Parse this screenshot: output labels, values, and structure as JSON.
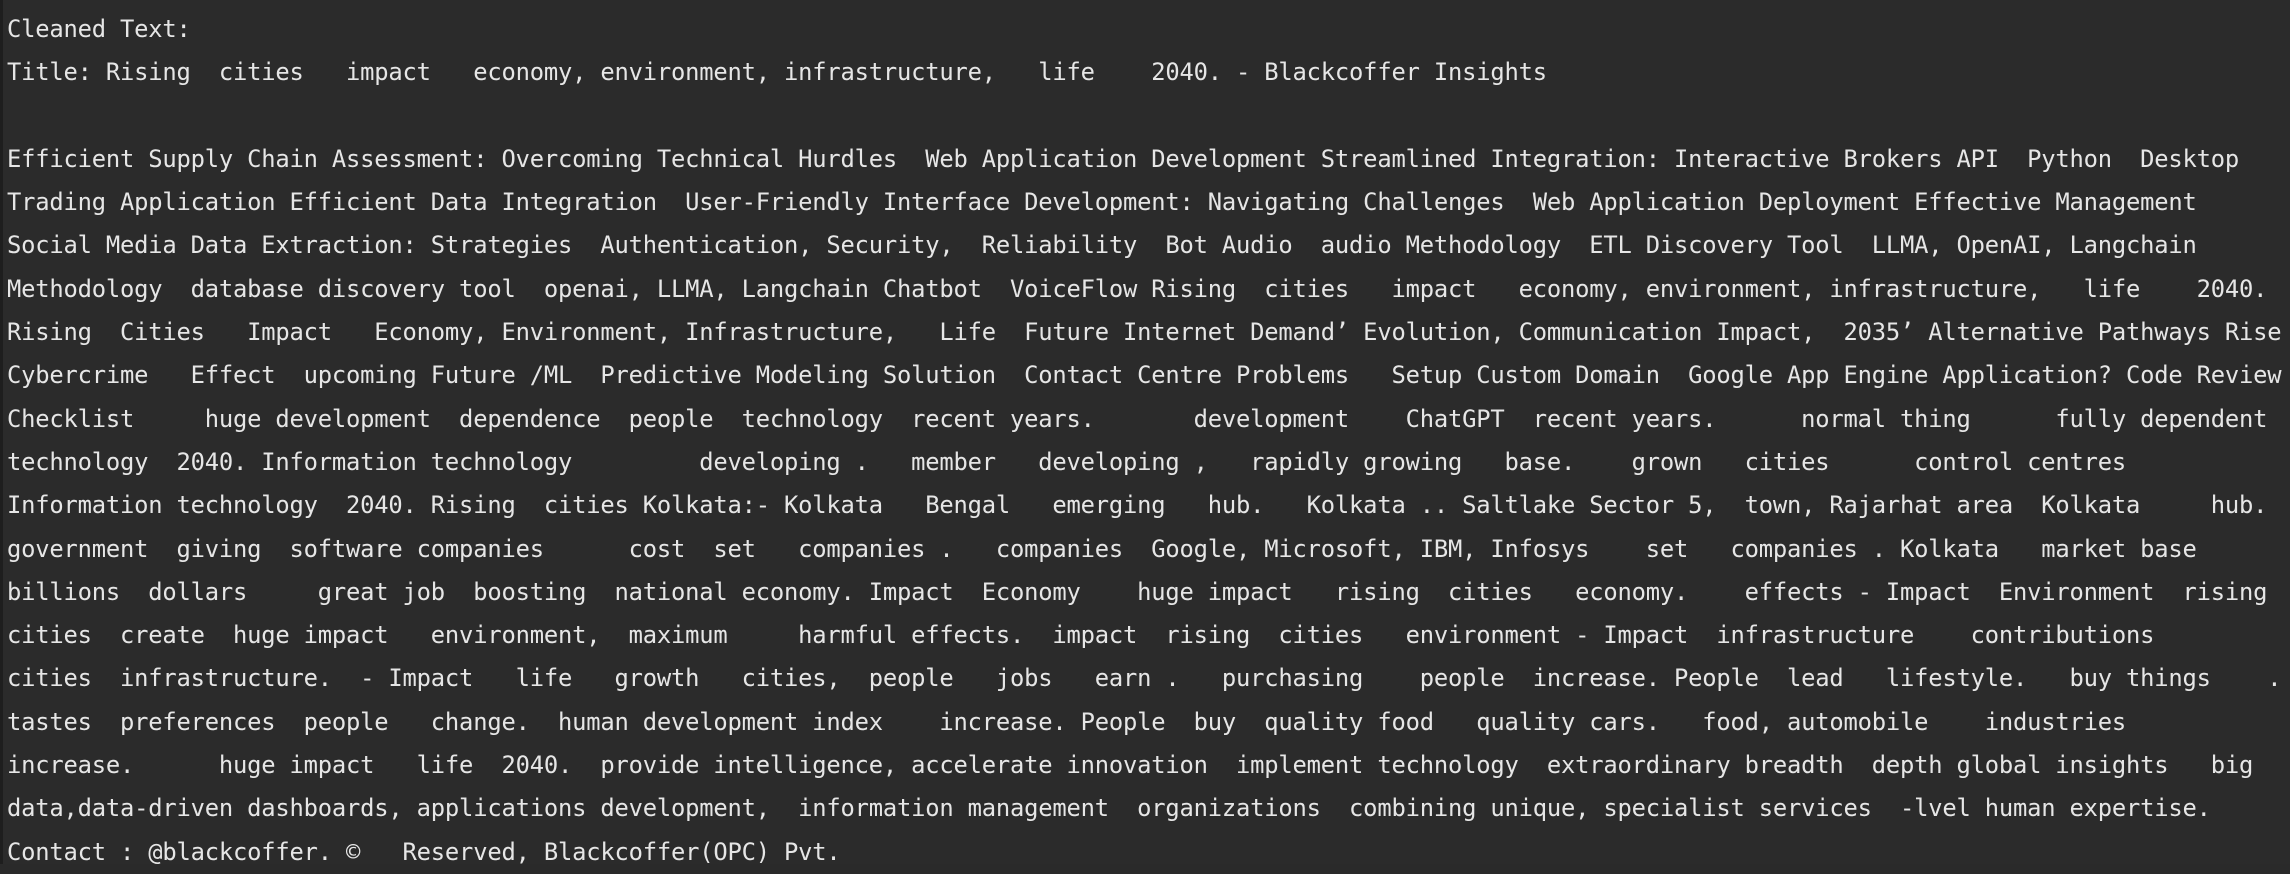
{
  "lines": [
    "Cleaned Text:",
    "Title: Rising  cities   impact   economy, environment, infrastructure,   life    2040. - Blackcoffer Insights",
    "",
    "Efficient Supply Chain Assessment: Overcoming Technical Hurdles  Web Application Development Streamlined Integration: Interactive Brokers API  Python  Desktop",
    "Trading Application Efficient Data Integration  User-Friendly Interface Development: Navigating Challenges  Web Application Deployment Effective Management",
    "Social Media Data Extraction: Strategies  Authentication, Security,  Reliability  Bot Audio  audio Methodology  ETL Discovery Tool  LLMA, OpenAI, Langchain",
    "Methodology  database discovery tool  openai, LLMA, Langchain Chatbot  VoiceFlow Rising  cities   impact   economy, environment, infrastructure,   life    2040.",
    "Rising  Cities   Impact   Economy, Environment, Infrastructure,   Life  Future Internet Demand’ Evolution, Communication Impact,  2035’ Alternative Pathways Rise",
    "Cybercrime   Effect  upcoming Future /ML  Predictive Modeling Solution  Contact Centre Problems   Setup Custom Domain  Google App Engine Application? Code Review",
    "Checklist     huge development  dependence  people  technology  recent years.       development    ChatGPT  recent years.      normal thing      fully dependent",
    "technology  2040. Information technology         developing .   member   developing ,   rapidly growing   base.    grown   cities      control centres",
    "Information technology  2040. Rising  cities Kolkata:- Kolkata   Bengal   emerging   hub.   Kolkata .. Saltlake Sector 5,  town, Rajarhat area  Kolkata     hub.",
    "government  giving  software companies      cost  set   companies .   companies  Google, Microsoft, IBM, Infosys    set   companies . Kolkata   market base",
    "billions  dollars     great job  boosting  national economy. Impact  Economy    huge impact   rising  cities   economy.    effects - Impact  Environment  rising",
    "cities  create  huge impact   environment,  maximum     harmful effects.  impact  rising  cities   environment - Impact  infrastructure    contributions",
    "cities  infrastructure.  - Impact   life   growth   cities,  people   jobs   earn .   purchasing    people  increase. People  lead   lifestyle.   buy things    .",
    "tastes  preferences  people   change.  human development index    increase. People  buy  quality food   quality cars.   food, automobile    industries",
    "increase.      huge impact   life  2040.  provide intelligence, accelerate innovation  implement technology  extraordinary breadth  depth global insights   big",
    "data,data-driven dashboards, applications development,  information management  organizations  combining unique, specialist services  -lvel human expertise.",
    "Contact : @blackcoffer. ©   Reserved, Blackcoffer(OPC) Pvt."
  ]
}
